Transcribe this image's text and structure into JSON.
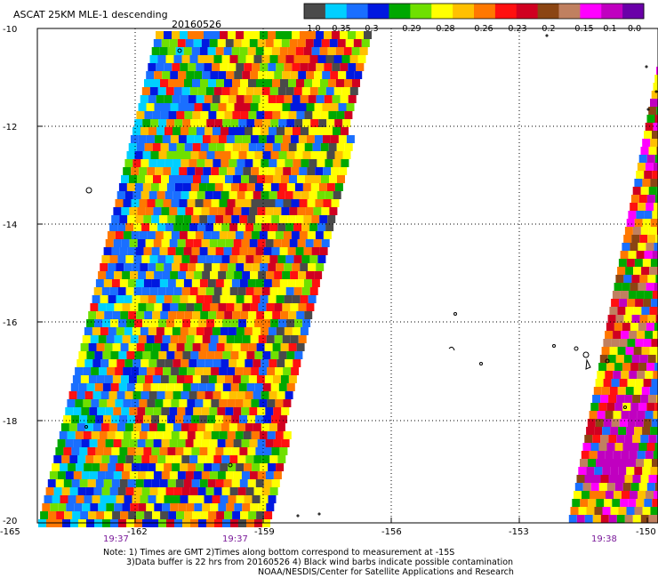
{
  "header": {
    "title": "ASCAT 25KM MLE-1 descending",
    "date": "20160526"
  },
  "colorbar": {
    "colors": [
      "#4a4a4a",
      "#00cfff",
      "#1a6fff",
      "#0018e0",
      "#00a800",
      "#6fe000",
      "#ffff00",
      "#ffc000",
      "#ff7800",
      "#ff1010",
      "#d00020",
      "#8b4513",
      "#c08060",
      "#ff00ff",
      "#c000c0",
      "#6a00a8"
    ],
    "labels": [
      "-1.0",
      "-0.35",
      "-0.3",
      "-0.29",
      "-0.28",
      "-0.26",
      "-0.23",
      "-0.2",
      "-0.15",
      "-0.1",
      "0.0"
    ]
  },
  "axes": {
    "y_ticks": [
      "-10",
      "-12",
      "-14",
      "-16",
      "-18",
      "-20"
    ],
    "x_ticks": [
      "-165",
      "-162",
      "-159",
      "-156",
      "-153",
      "-150"
    ],
    "time_labels": [
      "19:37",
      "19:37",
      "19:38"
    ]
  },
  "notes": {
    "line1": "Note: 1) Times are GMT 2)Times along bottom correspond to measurement at -15S",
    "line2": "3)Data buffer is 22 hrs from 20160526 4) Black wind barbs indicate possible contamination",
    "line3": "NOAA/NESDIS/Center for Satellite Applications and Research"
  }
}
